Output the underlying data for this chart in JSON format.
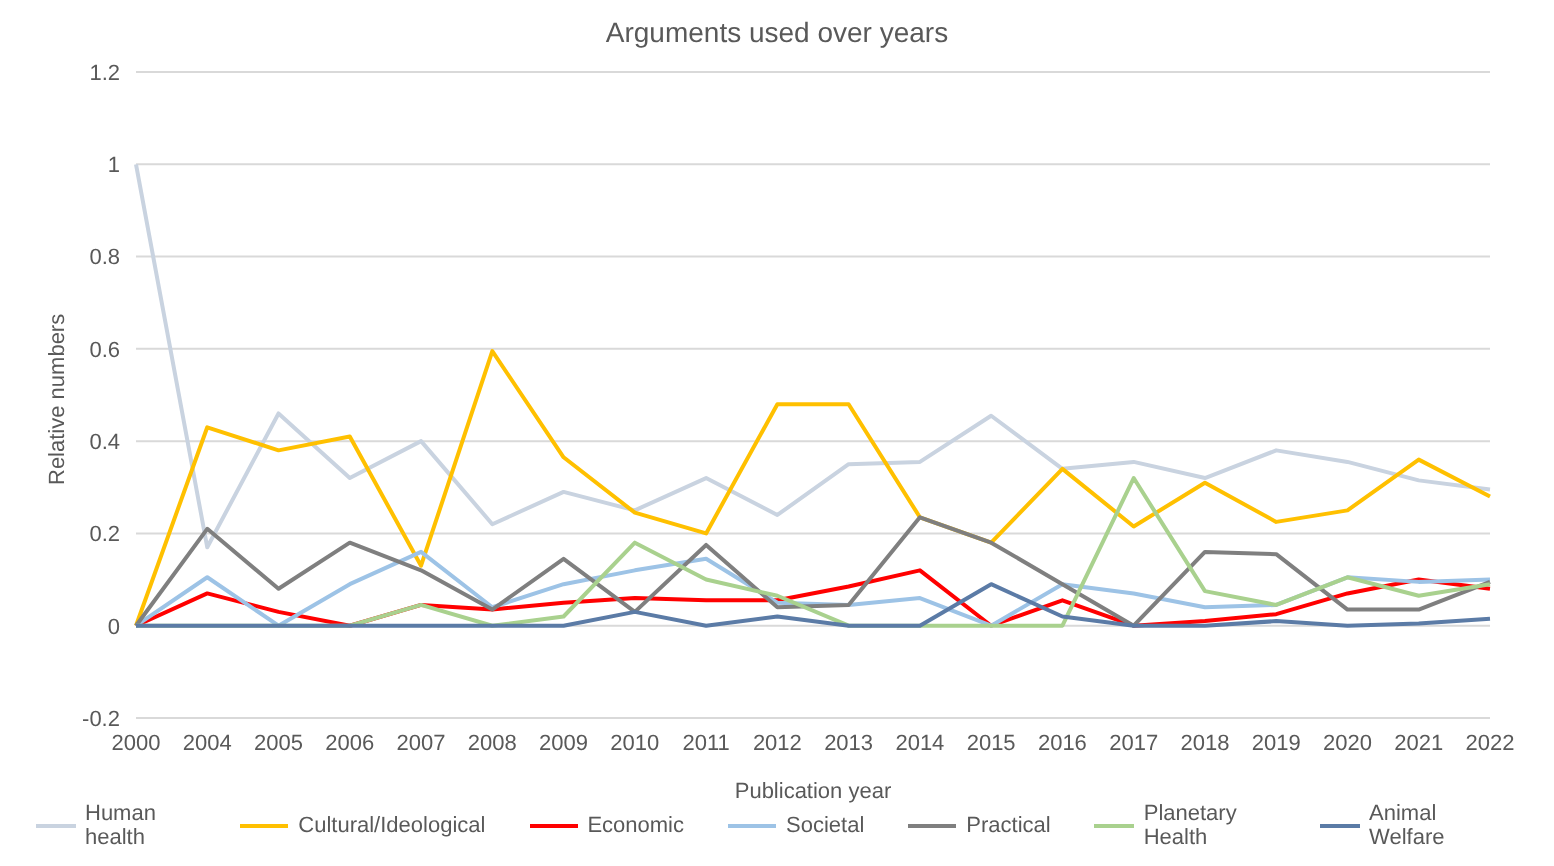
{
  "chart_data": {
    "type": "line",
    "title": "Arguments used over years",
    "xlabel": "Publication year",
    "ylabel": "Relative numbers",
    "categories": [
      "2000",
      "2004",
      "2005",
      "2006",
      "2007",
      "2008",
      "2009",
      "2010",
      "2011",
      "2012",
      "2013",
      "2014",
      "2015",
      "2016",
      "2017",
      "2018",
      "2019",
      "2020",
      "2021",
      "2022"
    ],
    "series": [
      {
        "name": "Human health",
        "color": "#c9d3e0",
        "values": [
          1,
          0.17,
          0.46,
          0.32,
          0.4,
          0.22,
          0.29,
          0.25,
          0.32,
          0.24,
          0.35,
          0.355,
          0.455,
          0.34,
          0.355,
          0.32,
          0.38,
          0.355,
          0.315,
          0.295
        ]
      },
      {
        "name": "Cultural/Ideological",
        "color": "#ffc000",
        "values": [
          0,
          0.43,
          0.38,
          0.41,
          0.13,
          0.595,
          0.365,
          0.245,
          0.2,
          0.48,
          0.48,
          0.235,
          0.18,
          0.34,
          0.215,
          0.31,
          0.225,
          0.25,
          0.36,
          0.28
        ]
      },
      {
        "name": "Economic",
        "color": "#ff0000",
        "values": [
          0,
          0.07,
          0.03,
          0,
          0.045,
          0.035,
          0.05,
          0.06,
          0.055,
          0.055,
          0.085,
          0.12,
          0,
          0.055,
          0,
          0.01,
          0.025,
          0.07,
          0.1,
          0.08
        ]
      },
      {
        "name": "Societal",
        "color": "#9dc3e6",
        "values": [
          0,
          0.105,
          0,
          0.09,
          0.16,
          0.04,
          0.09,
          0.12,
          0.145,
          0.05,
          0.045,
          0.06,
          0,
          0.09,
          0.07,
          0.04,
          0.045,
          0.105,
          0.095,
          0.1
        ]
      },
      {
        "name": "Practical",
        "color": "#7f7f7f",
        "values": [
          0,
          0.21,
          0.08,
          0.18,
          0.12,
          0.035,
          0.145,
          0.03,
          0.175,
          0.04,
          0.045,
          0.235,
          0.18,
          0.09,
          0,
          0.16,
          0.155,
          0.035,
          0.035,
          0.095
        ]
      },
      {
        "name": "Planetary Health",
        "color": "#a9d18e",
        "values": [
          0,
          0,
          0,
          0,
          0.045,
          0,
          0.02,
          0.18,
          0.1,
          0.065,
          0,
          0,
          0,
          0,
          0.32,
          0.075,
          0.045,
          0.105,
          0.065,
          0.09
        ]
      },
      {
        "name": "Animal Welfare",
        "color": "#5b7ba6",
        "values": [
          0,
          0,
          0,
          0,
          0,
          0,
          0,
          0.03,
          0,
          0.02,
          0,
          0,
          0.09,
          0.02,
          0,
          0,
          0.01,
          0,
          0.005,
          0.015
        ]
      }
    ],
    "ylim": [
      -0.2,
      1.2
    ],
    "yticks": [
      -0.2,
      0,
      0.2,
      0.4,
      0.6,
      0.8,
      1,
      1.2
    ],
    "grid": "y",
    "legend": "bottom",
    "marker": "none",
    "line_style": "solid"
  }
}
